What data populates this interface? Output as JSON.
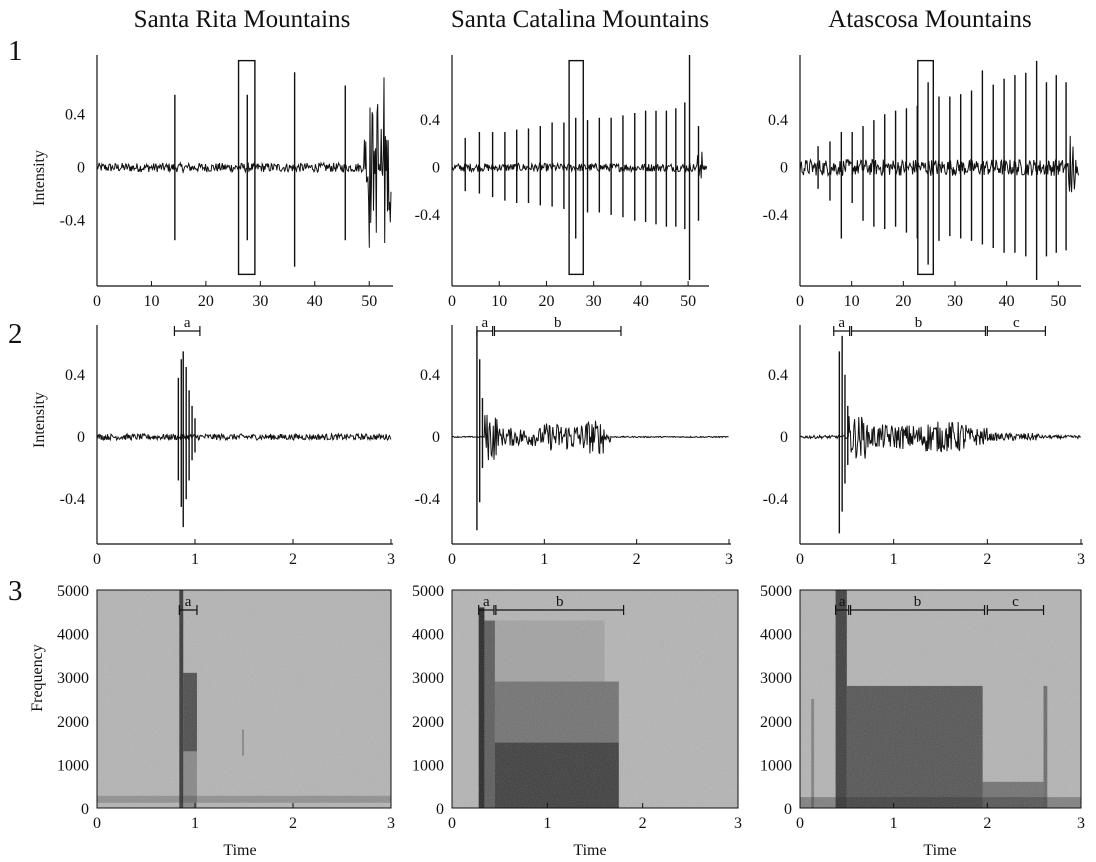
{
  "colors": {
    "ink": "#111111",
    "spec_background": "#b4b4b4",
    "spec_energy": "#1e1e1e"
  },
  "row_labels": [
    "1",
    "2",
    "3"
  ],
  "columns": [
    {
      "title": "Santa Rita Mountains"
    },
    {
      "title": "Santa Catalina Mountains"
    },
    {
      "title": "Atascosa Mountains"
    }
  ],
  "axis_labels": {
    "intensity": "Intensity",
    "frequency": "Frequency",
    "time": "Time"
  },
  "chart_data": [
    {
      "type": "line",
      "panel": "row1-col1",
      "ylabel": "Intensity",
      "xlim": [
        0,
        54
      ],
      "ylim": [
        -0.85,
        0.85
      ],
      "xticks": [
        0,
        10,
        20,
        30,
        40,
        50
      ],
      "yticks": [
        "0.4",
        "0",
        "-0.4"
      ],
      "spikes": [
        {
          "t": 14.3,
          "hi": 0.55,
          "lo": -0.55
        },
        {
          "t": 27.6,
          "hi": 0.55,
          "lo": -0.55
        },
        {
          "t": 36.3,
          "hi": 0.72,
          "lo": -0.75
        },
        {
          "t": 45.6,
          "hi": 0.62,
          "lo": -0.55
        }
      ],
      "burst": {
        "from": 49,
        "to": 54,
        "amp": 0.78
      },
      "noise": 0.035,
      "selection": {
        "from": 26,
        "to": 29
      }
    },
    {
      "type": "line",
      "panel": "row1-col2",
      "xlim": [
        0,
        54
      ],
      "ylim": [
        -0.95,
        0.95
      ],
      "xticks": [
        0,
        10,
        20,
        30,
        40,
        50
      ],
      "yticks": [
        "0.4",
        "0",
        "-0.4"
      ],
      "spikes": [
        {
          "t": 2.8,
          "hi": 0.25,
          "lo": -0.2
        },
        {
          "t": 5.8,
          "hi": 0.3,
          "lo": -0.22
        },
        {
          "t": 8.6,
          "hi": 0.3,
          "lo": -0.25
        },
        {
          "t": 11.2,
          "hi": 0.3,
          "lo": -0.28
        },
        {
          "t": 13.7,
          "hi": 0.32,
          "lo": -0.3
        },
        {
          "t": 16.2,
          "hi": 0.33,
          "lo": -0.3
        },
        {
          "t": 18.7,
          "hi": 0.35,
          "lo": -0.32
        },
        {
          "t": 21.2,
          "hi": 0.38,
          "lo": -0.33
        },
        {
          "t": 23.7,
          "hi": 0.38,
          "lo": -0.35
        },
        {
          "t": 26.2,
          "hi": 0.42,
          "lo": -0.6
        },
        {
          "t": 28.7,
          "hi": 0.4,
          "lo": -0.38
        },
        {
          "t": 31.2,
          "hi": 0.42,
          "lo": -0.38
        },
        {
          "t": 33.7,
          "hi": 0.42,
          "lo": -0.4
        },
        {
          "t": 36.2,
          "hi": 0.44,
          "lo": -0.42
        },
        {
          "t": 38.7,
          "hi": 0.46,
          "lo": -0.45
        },
        {
          "t": 41.0,
          "hi": 0.48,
          "lo": -0.46
        },
        {
          "t": 43.2,
          "hi": 0.48,
          "lo": -0.48
        },
        {
          "t": 45.4,
          "hi": 0.48,
          "lo": -0.5
        },
        {
          "t": 47.4,
          "hi": 0.5,
          "lo": -0.5
        },
        {
          "t": 49.3,
          "hi": 0.55,
          "lo": -0.52
        },
        {
          "t": 50.3,
          "hi": 0.95,
          "lo": -0.95
        },
        {
          "t": 52.2,
          "hi": 0.35,
          "lo": -0.45
        }
      ],
      "burst": {
        "from": 52,
        "to": 53,
        "amp": 0.2
      },
      "noise": 0.035,
      "selection": {
        "from": 24.8,
        "to": 27.8
      }
    },
    {
      "type": "line",
      "panel": "row1-col3",
      "xlim": [
        0,
        54
      ],
      "ylim": [
        -0.95,
        0.95
      ],
      "xticks": [
        0,
        10,
        20,
        30,
        40,
        50
      ],
      "yticks": [
        "0.4",
        "0",
        "-0.4"
      ],
      "spikes": [
        {
          "t": 3.5,
          "hi": 0.18,
          "lo": -0.18
        },
        {
          "t": 5.8,
          "hi": 0.22,
          "lo": -0.28
        },
        {
          "t": 8.0,
          "hi": 0.3,
          "lo": -0.6
        },
        {
          "t": 10.1,
          "hi": 0.3,
          "lo": -0.3
        },
        {
          "t": 12.2,
          "hi": 0.35,
          "lo": -0.45
        },
        {
          "t": 14.3,
          "hi": 0.4,
          "lo": -0.5
        },
        {
          "t": 16.4,
          "hi": 0.45,
          "lo": -0.52
        },
        {
          "t": 18.5,
          "hi": 0.48,
          "lo": -0.5
        },
        {
          "t": 20.6,
          "hi": 0.5,
          "lo": -0.55
        },
        {
          "t": 22.7,
          "hi": 0.52,
          "lo": -0.6
        },
        {
          "t": 24.8,
          "hi": 0.72,
          "lo": -0.82
        },
        {
          "t": 26.9,
          "hi": 0.6,
          "lo": -0.62
        },
        {
          "t": 29.0,
          "hi": 0.6,
          "lo": -0.58
        },
        {
          "t": 31.1,
          "hi": 0.62,
          "lo": -0.6
        },
        {
          "t": 33.2,
          "hi": 0.65,
          "lo": -0.62
        },
        {
          "t": 35.3,
          "hi": 0.82,
          "lo": -0.65
        },
        {
          "t": 37.4,
          "hi": 0.7,
          "lo": -0.68
        },
        {
          "t": 39.5,
          "hi": 0.75,
          "lo": -0.72
        },
        {
          "t": 41.6,
          "hi": 0.78,
          "lo": -0.72
        },
        {
          "t": 43.7,
          "hi": 0.8,
          "lo": -0.75
        },
        {
          "t": 45.8,
          "hi": 0.9,
          "lo": -0.95
        },
        {
          "t": 47.7,
          "hi": 0.72,
          "lo": -0.75
        },
        {
          "t": 49.6,
          "hi": 0.78,
          "lo": -0.72
        },
        {
          "t": 51.5,
          "hi": 0.72,
          "lo": -0.7
        }
      ],
      "burst": {
        "from": 52,
        "to": 53.5,
        "amp": 0.35
      },
      "noise": 0.07,
      "selection": {
        "from": 22.8,
        "to": 25.8
      }
    },
    {
      "type": "line",
      "panel": "row2-col1",
      "ylabel": "Intensity",
      "xlim": [
        0,
        3
      ],
      "ylim": [
        -0.65,
        0.72
      ],
      "xticks": [
        0,
        1,
        2,
        3
      ],
      "yticks": [
        "0.4",
        "0",
        "-0.4"
      ],
      "spikes": [
        {
          "t": 0.83,
          "hi": 0.38,
          "lo": -0.28
        },
        {
          "t": 0.86,
          "hi": 0.5,
          "lo": -0.45
        },
        {
          "t": 0.88,
          "hi": 0.55,
          "lo": -0.58
        },
        {
          "t": 0.91,
          "hi": 0.45,
          "lo": -0.4
        },
        {
          "t": 0.94,
          "hi": 0.3,
          "lo": -0.28
        },
        {
          "t": 0.97,
          "hi": 0.2,
          "lo": -0.15
        },
        {
          "t": 1.0,
          "hi": 0.12,
          "lo": -0.1
        }
      ],
      "noise": 0.02,
      "envelope": [],
      "segments": [
        {
          "label": "a",
          "from": 0.79,
          "to": 1.05
        }
      ]
    },
    {
      "type": "line",
      "panel": "row2-col2",
      "xlim": [
        0,
        3
      ],
      "ylim": [
        -0.65,
        0.72
      ],
      "xticks": [
        0,
        1,
        2,
        3
      ],
      "yticks": [
        "0.4",
        "0",
        "-0.4"
      ],
      "spikes": [
        {
          "t": 0.27,
          "hi": 0.68,
          "lo": -0.6
        },
        {
          "t": 0.3,
          "hi": 0.5,
          "lo": -0.42
        },
        {
          "t": 0.33,
          "hi": 0.25,
          "lo": -0.2
        }
      ],
      "noise": 0.004,
      "envelope": [
        {
          "from": 0.35,
          "to": 0.5,
          "amp": 0.16
        },
        {
          "from": 0.5,
          "to": 1.0,
          "amp": 0.06
        },
        {
          "from": 1.0,
          "to": 1.45,
          "amp": 0.09
        },
        {
          "from": 1.45,
          "to": 1.65,
          "amp": 0.11
        },
        {
          "from": 1.65,
          "to": 1.72,
          "amp": 0.04
        }
      ],
      "segments": [
        {
          "label": "a",
          "from": 0.27,
          "to": 0.44
        },
        {
          "label": "b",
          "from": 0.46,
          "to": 1.83
        }
      ]
    },
    {
      "type": "line",
      "panel": "row2-col3",
      "xlim": [
        0,
        3
      ],
      "ylim": [
        -0.65,
        0.72
      ],
      "xticks": [
        0,
        1,
        2,
        3
      ],
      "yticks": [
        "0.4",
        "0",
        "-0.4"
      ],
      "spikes": [
        {
          "t": 0.42,
          "hi": 0.55,
          "lo": -0.62
        },
        {
          "t": 0.45,
          "hi": 0.65,
          "lo": -0.48
        },
        {
          "t": 0.48,
          "hi": 0.4,
          "lo": -0.3
        },
        {
          "t": 0.51,
          "hi": 0.2,
          "lo": -0.18
        }
      ],
      "noise": 0.01,
      "envelope": [
        {
          "from": 0.52,
          "to": 0.7,
          "amp": 0.14
        },
        {
          "from": 0.7,
          "to": 1.3,
          "amp": 0.08
        },
        {
          "from": 1.3,
          "to": 1.8,
          "amp": 0.1
        },
        {
          "from": 1.8,
          "to": 2.0,
          "amp": 0.06
        },
        {
          "from": 2.0,
          "to": 2.55,
          "amp": 0.025
        }
      ],
      "segments": [
        {
          "label": "a",
          "from": 0.36,
          "to": 0.53
        },
        {
          "label": "b",
          "from": 0.55,
          "to": 1.98
        },
        {
          "label": "c",
          "from": 2.0,
          "to": 2.62
        }
      ]
    },
    {
      "type": "heatmap",
      "panel": "row3-col1",
      "ylabel": "Frequency",
      "xlabel": "Time",
      "xlim": [
        0,
        3
      ],
      "ylim": [
        0,
        5000
      ],
      "xticks": [
        0,
        1,
        2,
        3
      ],
      "yticks": [
        0,
        1000,
        2000,
        3000,
        4000,
        5000
      ],
      "bands": [
        {
          "t0": 0.84,
          "t1": 0.88,
          "f0": 0,
          "f1": 5000,
          "d": 0.85
        },
        {
          "t0": 0.88,
          "t1": 1.02,
          "f0": 1300,
          "f1": 3100,
          "d": 0.7
        },
        {
          "t0": 0.88,
          "t1": 1.02,
          "f0": 0,
          "f1": 1300,
          "d": 0.3
        },
        {
          "t0": 0.0,
          "t1": 3.0,
          "f0": 120,
          "f1": 280,
          "d": 0.25
        },
        {
          "t0": 1.48,
          "t1": 1.5,
          "f0": 1200,
          "f1": 1800,
          "d": 0.3
        }
      ],
      "segments": [
        {
          "label": "a",
          "from": 0.84,
          "to": 1.02
        }
      ]
    },
    {
      "type": "heatmap",
      "panel": "row3-col2",
      "xlabel": "Time",
      "xlim": [
        0,
        3
      ],
      "ylim": [
        0,
        5000
      ],
      "xticks": [
        0,
        1,
        2,
        3
      ],
      "yticks": [
        0,
        1000,
        2000,
        3000,
        4000,
        5000
      ],
      "bands": [
        {
          "t0": 0.28,
          "t1": 0.34,
          "f0": 0,
          "f1": 4600,
          "d": 0.95
        },
        {
          "t0": 0.34,
          "t1": 0.45,
          "f0": 0,
          "f1": 4300,
          "d": 0.6
        },
        {
          "t0": 0.45,
          "t1": 1.75,
          "f0": 0,
          "f1": 1500,
          "d": 0.8
        },
        {
          "t0": 0.45,
          "t1": 1.75,
          "f0": 1500,
          "f1": 2900,
          "d": 0.45
        },
        {
          "t0": 0.45,
          "t1": 1.6,
          "f0": 2900,
          "f1": 4300,
          "d": 0.12
        }
      ],
      "segments": [
        {
          "label": "a",
          "from": 0.28,
          "to": 0.44
        },
        {
          "label": "b",
          "from": 0.46,
          "to": 1.8
        }
      ]
    },
    {
      "type": "heatmap",
      "panel": "row3-col3",
      "xlabel": "Time",
      "xlim": [
        0,
        3
      ],
      "ylim": [
        0,
        5000
      ],
      "xticks": [
        0,
        1,
        2,
        3
      ],
      "yticks": [
        0,
        1000,
        2000,
        3000,
        4000,
        5000
      ],
      "bands": [
        {
          "t0": 0.38,
          "t1": 0.5,
          "f0": 0,
          "f1": 5000,
          "d": 0.8
        },
        {
          "t0": 0.5,
          "t1": 1.95,
          "f0": 0,
          "f1": 2800,
          "d": 0.65
        },
        {
          "t0": 1.95,
          "t1": 2.6,
          "f0": 0,
          "f1": 600,
          "d": 0.45
        },
        {
          "t0": 0.0,
          "t1": 3.0,
          "f0": 0,
          "f1": 250,
          "d": 0.35
        },
        {
          "t0": 2.6,
          "t1": 2.64,
          "f0": 0,
          "f1": 2800,
          "d": 0.5
        },
        {
          "t0": 0.12,
          "t1": 0.15,
          "f0": 0,
          "f1": 2500,
          "d": 0.35
        }
      ],
      "segments": [
        {
          "label": "a",
          "from": 0.38,
          "to": 0.52
        },
        {
          "label": "b",
          "from": 0.54,
          "to": 1.97
        },
        {
          "label": "c",
          "from": 2.0,
          "to": 2.6
        }
      ]
    }
  ]
}
